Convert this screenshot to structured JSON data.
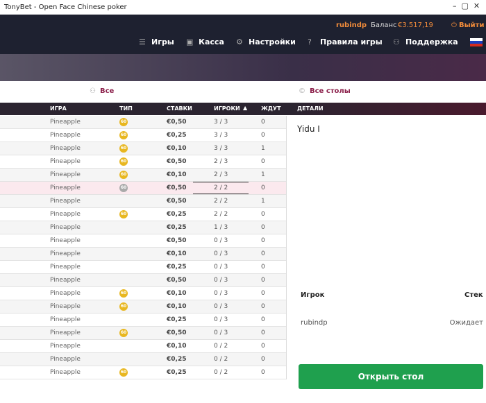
{
  "window": {
    "title": "TonyBet - Open Face Chinese poker"
  },
  "header": {
    "username": "rubindp",
    "balance_label": "Баланс",
    "balance": "€3.517,19",
    "logout": "Выйти",
    "nav": [
      "Игры",
      "Касса",
      "Настройки",
      "Правила игры",
      "Поддержка"
    ]
  },
  "tabs": [
    "Все",
    "Все столы"
  ],
  "table": {
    "columns": [
      "ИГРА",
      "ТИП",
      "СТАВКИ",
      "ИГРОКИ",
      "ЖДУТ"
    ],
    "rows": [
      [
        "Pineapple",
        "60",
        "€0,50",
        "3 / 3",
        0
      ],
      [
        "Pineapple",
        "60",
        "€0,25",
        "3 / 3",
        0
      ],
      [
        "Pineapple",
        "60",
        "€0,10",
        "3 / 3",
        1
      ],
      [
        "Pineapple",
        "60",
        "€0,50",
        "2 / 3",
        0
      ],
      [
        "Pineapple",
        "60",
        "€0,10",
        "2 / 3",
        1
      ],
      [
        "Pineapple",
        "60",
        "€0,50",
        "2 / 2",
        0
      ],
      [
        "Pineapple",
        null,
        "€0,50",
        "2 / 2",
        1
      ],
      [
        "Pineapple",
        "60",
        "€0,25",
        "2 / 2",
        0
      ],
      [
        "Pineapple",
        null,
        "€0,25",
        "1 / 3",
        0
      ],
      [
        "Pineapple",
        null,
        "€0,50",
        "0 / 3",
        0
      ],
      [
        "Pineapple",
        null,
        "€0,10",
        "0 / 3",
        0
      ],
      [
        "Pineapple",
        null,
        "€0,25",
        "0 / 3",
        0
      ],
      [
        "Pineapple",
        null,
        "€0,50",
        "0 / 3",
        0
      ],
      [
        "Pineapple",
        "60",
        "€0,10",
        "0 / 3",
        0
      ],
      [
        "Pineapple",
        "60",
        "€0,10",
        "0 / 3",
        0
      ],
      [
        "Pineapple",
        null,
        "€0,25",
        "0 / 3",
        0
      ],
      [
        "Pineapple",
        "60",
        "€0,50",
        "0 / 3",
        0
      ],
      [
        "Pineapple",
        null,
        "€0,10",
        "0 / 2",
        0
      ],
      [
        "Pineapple",
        null,
        "€0,25",
        "0 / 2",
        0
      ],
      [
        "Pineapple",
        "60",
        "€0,25",
        "0 / 2",
        0
      ]
    ]
  },
  "details": {
    "heading": "ДЕТАЛИ",
    "table_name": "Yidu I",
    "columns": [
      "Игрок",
      "Стек"
    ],
    "players": [
      [
        "rubindp",
        "Ожидает"
      ]
    ],
    "button": "Открыть стол"
  }
}
